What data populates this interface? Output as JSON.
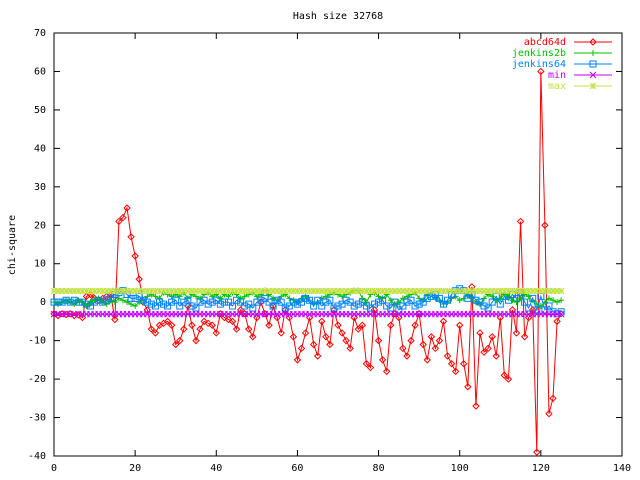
{
  "chart_data": {
    "type": "line",
    "title": "Hash size 32768",
    "ylabel": "chi-square",
    "x": [
      0,
      1,
      2,
      3,
      4,
      5,
      6,
      7,
      8,
      9,
      10,
      11,
      12,
      13,
      14,
      15,
      16,
      17,
      18,
      19,
      20,
      21,
      22,
      23,
      24,
      25,
      26,
      27,
      28,
      29,
      30,
      31,
      32,
      33,
      34,
      35,
      36,
      37,
      38,
      39,
      40,
      41,
      42,
      43,
      44,
      45,
      46,
      47,
      48,
      49,
      50,
      51,
      52,
      53,
      54,
      55,
      56,
      57,
      58,
      59,
      60,
      61,
      62,
      63,
      64,
      65,
      66,
      67,
      68,
      69,
      70,
      71,
      72,
      73,
      74,
      75,
      76,
      77,
      78,
      79,
      80,
      81,
      82,
      83,
      84,
      85,
      86,
      87,
      88,
      89,
      90,
      91,
      92,
      93,
      94,
      95,
      96,
      97,
      98,
      99,
      100,
      101,
      102,
      103,
      104,
      105,
      106,
      107,
      108,
      109,
      110,
      111,
      112,
      113,
      114,
      115,
      116,
      117,
      118,
      119,
      120,
      121,
      122,
      123,
      124,
      125
    ],
    "series": [
      {
        "name": "abcd64d",
        "color": "#ff0000",
        "marker": "diamond",
        "values": [
          -3,
          -3.5,
          -3,
          -3.2,
          -3,
          -3.5,
          -3.3,
          -4,
          1.5,
          2,
          1,
          0.5,
          1,
          1.5,
          2,
          -4.5,
          21,
          22,
          24.5,
          17,
          12,
          6,
          0,
          -2,
          -7,
          -8,
          -6,
          -5.5,
          -5,
          -6,
          -11,
          -10,
          -7,
          -1,
          -6,
          -10,
          -7,
          -5,
          -5.5,
          -6,
          -8,
          -3,
          -4,
          -4.5,
          -5,
          -7,
          -2,
          -3,
          -7,
          -9,
          -4,
          0,
          -3,
          -6,
          -1,
          -4,
          -8,
          -2,
          -4,
          -9,
          -15,
          -12,
          -8,
          -4,
          -11,
          -14,
          -5,
          -9,
          -11,
          -2,
          -6,
          -8,
          -10,
          -12,
          -4,
          -7,
          -6,
          -16,
          -17,
          -2,
          -10,
          -15,
          -18,
          -6,
          -3,
          -4,
          -12,
          -14,
          -10,
          -6,
          -3,
          -11,
          -15,
          -9,
          -12,
          -10,
          -5,
          -14,
          -16,
          -18,
          -6,
          -16,
          -22,
          4,
          -27,
          -8,
          -13,
          -12,
          -9,
          -14,
          -4,
          -19,
          -20,
          -2,
          -8,
          21,
          -9,
          -4,
          -2,
          -39,
          60,
          20,
          -29,
          -25,
          -5,
          -3
        ]
      },
      {
        "name": "jenkins2b",
        "color": "#00c000",
        "marker": "plus",
        "values": [
          0,
          -0.5,
          0,
          0.5,
          0,
          -0.5,
          0.5,
          0,
          -1,
          0,
          0.5,
          1,
          0,
          -0.5,
          0.5,
          0,
          1,
          0.5,
          0,
          -0.5,
          -1,
          0,
          0.5,
          1.5,
          2,
          1.5,
          1,
          2.5,
          2,
          1.5,
          2,
          1.5,
          2.5,
          1,
          2,
          1.5,
          1,
          2,
          2.5,
          1.5,
          2,
          1,
          2,
          1.5,
          2.5,
          2,
          1,
          1.5,
          2,
          2.5,
          1.5,
          2,
          3,
          2,
          1,
          0.5,
          1.5,
          2,
          1,
          0.5,
          0,
          1,
          1.5,
          0.5,
          -0.5,
          0,
          1,
          1.5,
          2,
          2.5,
          2,
          1.5,
          2,
          2.5,
          3,
          3,
          1,
          0,
          2,
          2.5,
          1.5,
          1,
          2,
          0.5,
          -0.5,
          0,
          1,
          1.5,
          2,
          2.5,
          1,
          0.5,
          2,
          2.5,
          1,
          0.5,
          -0.5,
          0,
          1,
          1.5,
          0.5,
          1,
          2,
          1,
          0,
          -0.5,
          1,
          2,
          1.5,
          0.5,
          1,
          2,
          1.5,
          0.5,
          0,
          1,
          2,
          1.5,
          0.5,
          -0.5,
          -1,
          0,
          1,
          0.5,
          0,
          0.5
        ]
      },
      {
        "name": "jenkins64",
        "color": "#0080ff",
        "marker": "square",
        "values": [
          0,
          0,
          0,
          0.5,
          0,
          0.5,
          0,
          0,
          -0.5,
          -1,
          0,
          0.5,
          0,
          0.5,
          1,
          2,
          2.5,
          3,
          2,
          1,
          1,
          1.5,
          0.5,
          0,
          -0.5,
          -1,
          0,
          -0.5,
          -1,
          0,
          0.5,
          -1,
          0,
          0.5,
          -1,
          -1.5,
          0,
          0.5,
          -0.5,
          0,
          0.5,
          -0.5,
          0,
          0,
          -1,
          0.5,
          0,
          -1,
          -0.5,
          -1.5,
          0,
          0.5,
          1,
          0,
          -1,
          0.5,
          0,
          -1.5,
          -1,
          0,
          -0.5,
          0,
          1,
          0.5,
          -1,
          0.5,
          -1,
          0,
          0.5,
          -1.5,
          -1,
          -0.5,
          0.5,
          0,
          -1,
          -0.5,
          0,
          -1,
          -1.5,
          -0.5,
          0,
          0.5,
          -1,
          -1.5,
          0,
          -2,
          -1,
          0,
          0.5,
          -1,
          -0.5,
          0,
          1,
          1.5,
          2,
          1,
          -0.5,
          0.5,
          2,
          3,
          3.5,
          3,
          1,
          2,
          0.5,
          0,
          -1,
          -1.5,
          0,
          1.5,
          -0.5,
          1.5,
          0.5,
          2,
          1,
          2.5,
          0,
          -1.5,
          1,
          -2,
          1.5,
          -2,
          -1,
          -2.5,
          -3,
          -2.5
        ]
      },
      {
        "name": "min",
        "color": "#c000ff",
        "marker": "cross",
        "values": [
          -3.1,
          -3.1,
          -3.1,
          -3.1,
          -3.1,
          -3.1,
          -3.1,
          -3.1,
          -3.1,
          -3.1,
          -3.1,
          -3.1,
          -3.1,
          -3.1,
          -3.1,
          -3.1,
          -3.1,
          -3.1,
          -3.1,
          -3.1,
          -3.1,
          -3.1,
          -3.1,
          -3.1,
          -3.1,
          -3.1,
          -3.1,
          -3.1,
          -3.1,
          -3.1,
          -3.1,
          -3.1,
          -3.1,
          -3.1,
          -3.1,
          -3.1,
          -3.1,
          -3.1,
          -3.1,
          -3.1,
          -3.1,
          -3.1,
          -3.1,
          -3.1,
          -3.1,
          -3.1,
          -3.1,
          -3.1,
          -3.1,
          -3.1,
          -3.1,
          -3.1,
          -3.1,
          -3.1,
          -3.1,
          -3.1,
          -3.1,
          -3.1,
          -3.1,
          -3.1,
          -3.1,
          -3.1,
          -3.1,
          -3.1,
          -3.1,
          -3.1,
          -3.1,
          -3.1,
          -3.1,
          -3.1,
          -3.1,
          -3.1,
          -3.1,
          -3.1,
          -3.1,
          -3.1,
          -3.1,
          -3.1,
          -3.1,
          -3.1,
          -3.1,
          -3.1,
          -3.1,
          -3.1,
          -3.1,
          -3.1,
          -3.1,
          -3.1,
          -3.1,
          -3.1,
          -3.1,
          -3.1,
          -3.1,
          -3.1,
          -3.1,
          -3.1,
          -3.1,
          -3.1,
          -3.1,
          -3.1,
          -3.1,
          -3.1,
          -3.1,
          -3.1,
          -3.1,
          -3.1,
          -3.1,
          -3.1,
          -3.1,
          -3.1,
          -3.1,
          -3.1,
          -3.1,
          -3.1,
          -3.1,
          -3.1,
          -3.1,
          -3.1,
          -3.1,
          -3.1,
          -3.1,
          -3.1,
          -3.1,
          -3.1,
          -3.1,
          -3.1
        ]
      },
      {
        "name": "max",
        "color": "#c0e040",
        "marker": "star",
        "values": [
          2.9,
          2.9,
          2.9,
          2.9,
          2.9,
          2.9,
          2.9,
          2.9,
          2.9,
          2.9,
          2.9,
          2.9,
          2.9,
          2.9,
          2.9,
          2.9,
          2.9,
          2.9,
          2.9,
          2.9,
          2.9,
          2.9,
          2.9,
          2.9,
          2.9,
          2.9,
          2.9,
          2.9,
          2.9,
          2.9,
          2.9,
          2.9,
          2.9,
          2.9,
          2.9,
          2.9,
          2.9,
          2.9,
          2.9,
          2.9,
          2.9,
          2.9,
          2.9,
          2.9,
          2.9,
          2.9,
          2.9,
          2.9,
          2.9,
          2.9,
          2.9,
          2.9,
          2.9,
          2.9,
          2.9,
          2.9,
          2.9,
          2.9,
          2.9,
          2.9,
          2.9,
          2.9,
          2.9,
          2.9,
          2.9,
          2.9,
          2.9,
          2.9,
          2.9,
          2.9,
          2.9,
          2.9,
          2.9,
          2.9,
          2.9,
          2.9,
          2.9,
          2.9,
          2.9,
          2.9,
          2.9,
          2.9,
          2.9,
          2.9,
          2.9,
          2.9,
          2.9,
          2.9,
          2.9,
          2.9,
          2.9,
          2.9,
          2.9,
          2.9,
          2.9,
          2.9,
          2.9,
          2.9,
          2.9,
          2.9,
          2.9,
          2.9,
          2.9,
          2.9,
          2.9,
          2.9,
          2.9,
          2.9,
          2.9,
          2.9,
          2.9,
          2.9,
          2.9,
          2.9,
          2.9,
          2.9,
          2.9,
          2.9,
          2.9,
          2.9,
          2.9,
          2.9,
          2.9,
          2.9,
          2.9,
          2.9
        ]
      }
    ],
    "xlim": [
      0,
      140
    ],
    "xticks": [
      0,
      20,
      40,
      60,
      80,
      100,
      120,
      140
    ],
    "ylim": [
      -40,
      70
    ],
    "yticks": [
      -40,
      -30,
      -20,
      -10,
      0,
      10,
      20,
      30,
      40,
      50,
      60,
      70
    ],
    "legend": "top-right"
  }
}
